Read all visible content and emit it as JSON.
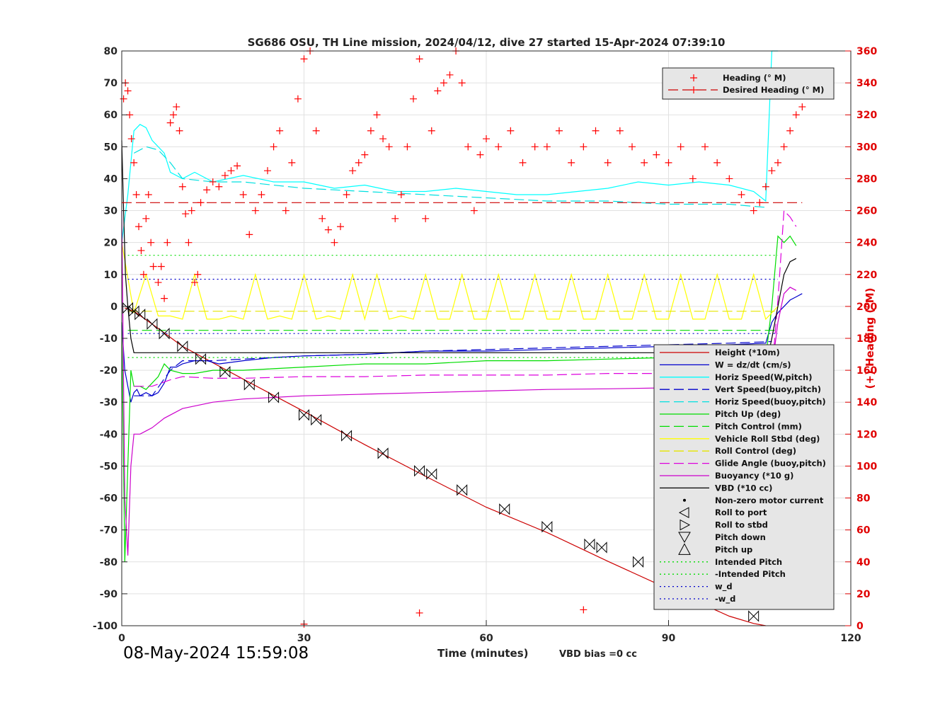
{
  "chart_data": {
    "type": "line",
    "title": "SG686 OSU, TH Line mission, 2024/04/12, dive 27 started 15-Apr-2024 07:39:10",
    "xlabel": "Time (minutes)",
    "ylabel_left": "",
    "ylabel_right": "(+) Heading (°M)",
    "xlim": [
      0,
      120
    ],
    "ylim": [
      -100,
      80
    ],
    "ylim_right": [
      0,
      360
    ],
    "x_ticks": [
      0,
      30,
      60,
      90,
      120
    ],
    "y_ticks": [
      80,
      70,
      60,
      50,
      40,
      30,
      20,
      10,
      0,
      -10,
      -20,
      -30,
      -40,
      -50,
      -60,
      -70,
      -80,
      -90,
      -100
    ],
    "y2_ticks": [
      360,
      340,
      320,
      300,
      280,
      260,
      240,
      220,
      200,
      180,
      160,
      140,
      120,
      100,
      80,
      60,
      40,
      20,
      0
    ],
    "grid": true,
    "timestamp": "08-May-2024 15:59:08",
    "vbd_bias": "VBD bias =0 cc",
    "heading_legend": [
      {
        "label": "Heading (° M)",
        "color": "#ff0000",
        "marker": "plus"
      },
      {
        "label": "Desired Heading (° M)",
        "color": "#cc0000",
        "marker": "dash"
      }
    ],
    "legend": [
      {
        "label": "Height (*10m)",
        "color": "#cc0000",
        "style": "solid"
      },
      {
        "label": "W = dz/dt (cm/s)",
        "color": "#0000cc",
        "style": "solid"
      },
      {
        "label": "Horiz Speed(W,pitch)",
        "color": "#00ffff",
        "style": "solid"
      },
      {
        "label": "Vert Speed(buoy,pitch)",
        "color": "#0000cc",
        "style": "dash"
      },
      {
        "label": "Horiz Speed(buoy,pitch)",
        "color": "#00e0e0",
        "style": "dash"
      },
      {
        "label": "Pitch Up (deg)",
        "color": "#00dd00",
        "style": "solid"
      },
      {
        "label": "Pitch Control (mm)",
        "color": "#00dd00",
        "style": "dash"
      },
      {
        "label": "Vehicle Roll Stbd (deg)",
        "color": "#ffff00",
        "style": "solid"
      },
      {
        "label": "Roll Control (deg)",
        "color": "#e6e600",
        "style": "dash"
      },
      {
        "label": "Glide Angle (buoy,pitch)",
        "color": "#dd00dd",
        "style": "dash"
      },
      {
        "label": "Buoyancy (*10 g)",
        "color": "#cc00cc",
        "style": "solid"
      },
      {
        "label": "VBD (*10 cc)",
        "color": "#000000",
        "style": "solid"
      },
      {
        "label": "Non-zero motor current",
        "color": "#000000",
        "style": "dot"
      },
      {
        "label": "Roll to port",
        "color": "#000000",
        "style": "tri-left"
      },
      {
        "label": "Roll to stbd",
        "color": "#000000",
        "style": "tri-right"
      },
      {
        "label": "Pitch down",
        "color": "#000000",
        "style": "tri-down"
      },
      {
        "label": "Pitch up",
        "color": "#000000",
        "style": "tri-up"
      },
      {
        "label": "Intended Pitch",
        "color": "#00dd00",
        "style": "dotted"
      },
      {
        "label": "-Intended Pitch",
        "color": "#00dd00",
        "style": "dotted"
      },
      {
        "label": "w_d",
        "color": "#0000cc",
        "style": "dotted"
      },
      {
        "label": "-w_d",
        "color": "#0000cc",
        "style": "dotted"
      }
    ],
    "series": [
      {
        "name": "Height (*10m)",
        "color": "#cc0000",
        "style": "solid",
        "x": [
          0.5,
          2,
          5,
          10,
          20,
          30,
          40,
          50,
          60,
          70,
          80,
          90,
          100,
          104,
          106
        ],
        "y": [
          -0.5,
          -1.5,
          -5.5,
          -12.5,
          -22.8,
          -32.9,
          -43.3,
          -53.2,
          -62.9,
          -70.8,
          -79.8,
          -88.5,
          -97,
          -99.3,
          -100
        ]
      },
      {
        "name": "W = dz/dt (cm/s)",
        "color": "#0000cc",
        "style": "solid",
        "x": [
          0,
          0.5,
          1,
          1.5,
          2,
          2.5,
          3,
          4,
          5,
          6,
          7,
          8,
          9,
          10,
          12,
          14,
          16,
          20,
          25,
          30,
          40,
          50,
          60,
          70,
          80,
          90,
          100,
          106,
          107,
          108,
          109,
          110,
          111,
          112
        ],
        "y": [
          -5,
          -20,
          -25,
          -30,
          -27,
          -26,
          -28,
          -27,
          -28,
          -27,
          -24,
          -19,
          -19,
          -18,
          -17,
          -17,
          -18,
          -17,
          -16,
          -15.5,
          -15,
          -14,
          -14,
          -13.5,
          -13,
          -12.5,
          -12,
          -11.5,
          -5,
          -2,
          0,
          2,
          3,
          4
        ]
      },
      {
        "name": "Horiz Speed(W,pitch)",
        "color": "#00ffff",
        "style": "solid",
        "x": [
          0,
          1,
          2,
          3,
          4,
          5,
          6,
          7,
          8,
          10,
          12,
          15,
          20,
          25,
          30,
          35,
          40,
          45,
          50,
          55,
          60,
          65,
          70,
          75,
          80,
          85,
          90,
          95,
          100,
          104,
          106,
          107,
          108
        ],
        "y": [
          20,
          35,
          55,
          57,
          56,
          52,
          50,
          48,
          42,
          40,
          42,
          39,
          41,
          39,
          39,
          37,
          38,
          36,
          36,
          37,
          36,
          35,
          35,
          36,
          37,
          39,
          38,
          39,
          38,
          36,
          33,
          80,
          80
        ]
      },
      {
        "name": "Vert Speed(buoy,pitch)",
        "color": "#0000cc",
        "style": "dash",
        "x": [
          2,
          5,
          8,
          10,
          15,
          20,
          30,
          40,
          50,
          60,
          70,
          80,
          90,
          100,
          107
        ],
        "y": [
          -28,
          -28,
          -20,
          -17,
          -17,
          -16.5,
          -15.5,
          -15,
          -14,
          -13.5,
          -13,
          -12.5,
          -12,
          -11.5,
          -11
        ]
      },
      {
        "name": "Horiz Speed(buoy,pitch)",
        "color": "#00e0e0",
        "style": "dash",
        "x": [
          2,
          4,
          6,
          8,
          10,
          15,
          20,
          30,
          40,
          50,
          60,
          70,
          80,
          90,
          100,
          106
        ],
        "y": [
          48,
          50,
          49,
          45,
          40,
          39,
          39,
          37,
          36,
          35,
          34,
          33,
          33,
          32,
          32,
          31
        ]
      },
      {
        "name": "Pitch Up (deg)",
        "color": "#00dd00",
        "style": "solid",
        "x": [
          0,
          0.5,
          1,
          1.5,
          2,
          3,
          4,
          5,
          6,
          7,
          8,
          10,
          12,
          15,
          20,
          30,
          40,
          50,
          60,
          70,
          80,
          90,
          100,
          106,
          107,
          108,
          109,
          110,
          111
        ],
        "y": [
          -5,
          -80,
          -50,
          -20,
          -25,
          -25,
          -26,
          -24,
          -22,
          -18,
          -20,
          -21,
          -21,
          -20,
          -20,
          -19,
          -18,
          -18,
          -17,
          -17,
          -16.5,
          -16,
          -16,
          -16,
          0,
          22,
          20,
          22,
          19
        ]
      },
      {
        "name": "Pitch Control (mm)",
        "color": "#00dd00",
        "style": "dash",
        "x": [
          1,
          108
        ],
        "y": [
          -7.5,
          -7.5
        ]
      },
      {
        "name": "Vehicle Roll Stbd (deg)",
        "color": "#ffff00",
        "style": "solid",
        "x": [
          0,
          2,
          4,
          6,
          8,
          10,
          12,
          14,
          16,
          18,
          20,
          22,
          24,
          26,
          28,
          30,
          32,
          34,
          36,
          38,
          40,
          42,
          44,
          46,
          48,
          50,
          52,
          54,
          56,
          58,
          60,
          62,
          64,
          66,
          68,
          70,
          72,
          74,
          76,
          78,
          80,
          82,
          84,
          86,
          88,
          90,
          92,
          94,
          96,
          98,
          100,
          102,
          104,
          106,
          108
        ],
        "y": [
          20,
          -2,
          10,
          -3,
          -3,
          -4,
          10,
          -4,
          -4,
          -3,
          -4,
          10,
          -4,
          -3,
          -4,
          10,
          -4,
          -3,
          -4,
          10,
          -4,
          10,
          -4,
          -3,
          -4,
          10,
          -4,
          -4,
          10,
          -4,
          -4,
          10,
          -4,
          -4,
          10,
          -4,
          -4,
          10,
          -4,
          -4,
          10,
          -4,
          -4,
          10,
          -4,
          -4,
          10,
          -4,
          -4,
          10,
          -4,
          -4,
          10,
          -4,
          0
        ]
      },
      {
        "name": "Roll Control (deg)",
        "color": "#e6e600",
        "style": "dash",
        "x": [
          1,
          108
        ],
        "y": [
          -1.5,
          -1.5
        ]
      },
      {
        "name": "Glide Angle (buoy,pitch)",
        "color": "#dd00dd",
        "style": "dash",
        "x": [
          2,
          5,
          8,
          10,
          15,
          20,
          30,
          40,
          50,
          60,
          70,
          80,
          90,
          100,
          107,
          108,
          109,
          110,
          111
        ],
        "y": [
          -25,
          -25,
          -23,
          -22,
          -22.5,
          -22.5,
          -22,
          -22,
          -21.5,
          -21.5,
          -21.5,
          -21,
          -21,
          -21,
          -21,
          2,
          30,
          28,
          25
        ]
      },
      {
        "name": "Buoyancy (*10 g)",
        "color": "#cc00cc",
        "style": "solid",
        "x": [
          0,
          0.5,
          1,
          1.5,
          2,
          3,
          4,
          5,
          7,
          10,
          15,
          20,
          30,
          40,
          50,
          60,
          70,
          80,
          90,
          100,
          106,
          107,
          108,
          109,
          110,
          111
        ],
        "y": [
          30,
          -60,
          -78,
          -50,
          -40,
          -40,
          -39,
          -38,
          -35,
          -32,
          -30,
          -29,
          -28,
          -27.5,
          -27,
          -26.5,
          -26,
          -25.8,
          -25.5,
          -25,
          -25,
          -20,
          -5,
          4,
          6,
          5
        ]
      },
      {
        "name": "VBD (*10 cc)",
        "color": "#000000",
        "style": "solid",
        "x": [
          0,
          0.3,
          0.6,
          1,
          1.5,
          2,
          3,
          100,
          106,
          106.5,
          107,
          108,
          109,
          110,
          111
        ],
        "y": [
          52,
          30,
          10,
          0,
          -10,
          -14.5,
          -14.5,
          -14.5,
          -14.5,
          -14.5,
          -10,
          0,
          10,
          14,
          15
        ]
      },
      {
        "name": "Intended Pitch",
        "color": "#00dd00",
        "style": "dotted",
        "x": [
          1,
          108
        ],
        "y": [
          16,
          16
        ]
      },
      {
        "name": "-Intended Pitch",
        "color": "#00dd00",
        "style": "dotted",
        "x": [
          1,
          108
        ],
        "y": [
          -16,
          -16
        ]
      },
      {
        "name": "w_d",
        "color": "#0000cc",
        "style": "dotted",
        "x": [
          1,
          108
        ],
        "y": [
          8.5,
          8.5
        ]
      },
      {
        "name": "-w_d",
        "color": "#0000cc",
        "style": "dotted",
        "x": [
          1,
          108
        ],
        "y": [
          -8.5,
          -8.5
        ]
      },
      {
        "name": "Desired Heading (° M)",
        "color": "#cc0000",
        "style": "dash",
        "axis": "right",
        "x": [
          0,
          112
        ],
        "y": [
          265,
          265
        ]
      }
    ],
    "heading_points": {
      "x": [
        0.3,
        0.6,
        1,
        1.3,
        1.6,
        2,
        2.4,
        2.8,
        3.2,
        3.6,
        4,
        4.4,
        4.8,
        5.2,
        6,
        6.5,
        7,
        7.5,
        8,
        8.5,
        9,
        9.5,
        10,
        10.5,
        11,
        11.5,
        12,
        12.5,
        13,
        14,
        15,
        16,
        17,
        18,
        19,
        20,
        21,
        22,
        23,
        24,
        25,
        26,
        27,
        28,
        29,
        30,
        31,
        32,
        33,
        34,
        35,
        36,
        37,
        38,
        39,
        40,
        41,
        42,
        43,
        44,
        45,
        46,
        47,
        48,
        49,
        50,
        51,
        52,
        53,
        54,
        55,
        56,
        57,
        58,
        59,
        60,
        62,
        64,
        66,
        68,
        70,
        72,
        74,
        76,
        78,
        80,
        82,
        84,
        86,
        88,
        90,
        92,
        94,
        96,
        98,
        100,
        102,
        104,
        105,
        106,
        107,
        108,
        109,
        110,
        111,
        112,
        30,
        49,
        76
      ],
      "y": [
        330,
        340,
        335,
        320,
        305,
        290,
        270,
        250,
        235,
        220,
        255,
        270,
        240,
        225,
        215,
        225,
        205,
        240,
        315,
        320,
        325,
        310,
        275,
        258,
        240,
        260,
        215,
        220,
        265,
        273,
        278,
        275,
        282,
        285,
        288,
        270,
        245,
        260,
        270,
        285,
        300,
        310,
        260,
        290,
        330,
        355,
        360,
        310,
        255,
        248,
        240,
        250,
        270,
        285,
        290,
        295,
        310,
        320,
        305,
        300,
        255,
        270,
        300,
        330,
        355,
        255,
        310,
        335,
        340,
        345,
        360,
        340,
        300,
        260,
        295,
        305,
        300,
        310,
        290,
        300,
        300,
        310,
        290,
        300,
        310,
        290,
        310,
        300,
        290,
        295,
        290,
        300,
        280,
        300,
        290,
        280,
        270,
        260,
        265,
        275,
        285,
        290,
        300,
        310,
        320,
        325,
        1,
        8,
        10
      ]
    },
    "events": {
      "pitch_down_x": [
        1,
        2,
        3,
        5,
        7,
        10,
        13,
        17,
        21,
        25,
        30,
        32,
        37,
        43,
        49,
        51,
        56,
        63,
        70,
        77,
        79,
        85,
        91,
        98,
        104
      ],
      "pitch_down_y": [
        -0.5,
        -1.5,
        -2.5,
        -5.5,
        -8.5,
        -12.5,
        -16.5,
        -20.5,
        -24.5,
        -28.5,
        -34,
        -35.5,
        -40.5,
        -46,
        -51.5,
        -52.5,
        -57.5,
        -63.5,
        -69,
        -74.5,
        -75.5,
        -80,
        -86,
        -92,
        -97
      ]
    }
  }
}
